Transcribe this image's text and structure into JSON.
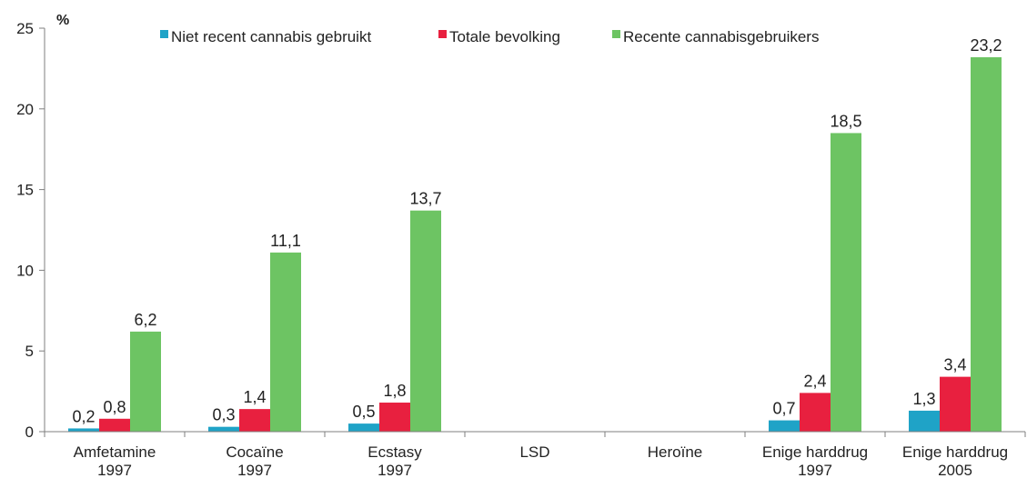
{
  "chart_data": {
    "type": "bar",
    "y_unit": "%",
    "ylim": [
      0,
      25
    ],
    "yticks": [
      "0",
      "5",
      "10",
      "15",
      "20",
      "25"
    ],
    "ytick_values": [
      0,
      5,
      10,
      15,
      20,
      25
    ],
    "grid": false,
    "legend_position": "top",
    "categories": [
      [
        "Amfetamine",
        "1997"
      ],
      [
        "Cocaïne",
        "1997"
      ],
      [
        "Ecstasy",
        "1997"
      ],
      [
        "LSD"
      ],
      [
        "Heroïne"
      ],
      [
        "Enige harddrug",
        "1997"
      ],
      [
        "Enige harddrug",
        "2005"
      ]
    ],
    "series": [
      {
        "name": "Niet recent cannabis gebruikt",
        "color": "#1fa3c7",
        "values": [
          0.2,
          0.3,
          0.5,
          null,
          null,
          0.7,
          1.3
        ],
        "labels": [
          "0,2",
          "0,3",
          "0,5",
          "",
          "",
          "0,7",
          "1,3"
        ]
      },
      {
        "name": "Totale bevolking",
        "color": "#e8203f",
        "values": [
          0.8,
          1.4,
          1.8,
          null,
          null,
          2.4,
          3.4
        ],
        "labels": [
          "0,8",
          "1,4",
          "1,8",
          "",
          "",
          "2,4",
          "3,4"
        ]
      },
      {
        "name": "Recente cannabisgebruikers",
        "color": "#6dc463",
        "values": [
          6.2,
          11.1,
          13.7,
          null,
          null,
          18.5,
          23.2
        ],
        "labels": [
          "6,2",
          "11,1",
          "13,7",
          "",
          "",
          "18,5",
          "23,2"
        ]
      }
    ]
  }
}
